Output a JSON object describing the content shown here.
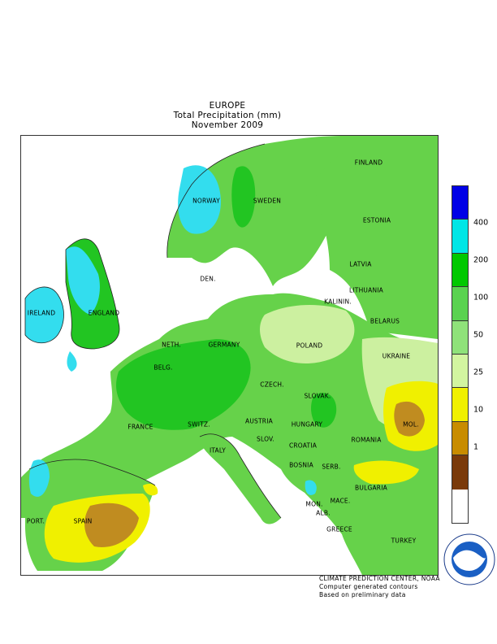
{
  "title": {
    "line1": "EUROPE",
    "line2": "Total Precipitation (mm)",
    "line3": "November 2009"
  },
  "countries": [
    "FINLAND",
    "NORWAY",
    "SWEDEN",
    "ESTONIA",
    "LATVIA",
    "DEN.",
    "LITHUANIA",
    "KALININ.",
    "BELARUS",
    "IRELAND",
    "ENGLAND",
    "NETH.",
    "GERMANY",
    "POLAND",
    "BELG.",
    "UKRAINE",
    "CZECH.",
    "SLOVAK.",
    "FRANCE",
    "AUSTRIA",
    "HUNGARY",
    "SWITZ.",
    "MOL.",
    "SLOV.",
    "ROMANIA",
    "CROATIA",
    "ITALY",
    "BOSNIA",
    "SERB.",
    "MON.",
    "BULGARIA",
    "MACE.",
    "PORT.",
    "SPAIN",
    "ALB.",
    "GREECE",
    "TURKEY"
  ],
  "legend": {
    "colors": [
      "#0000e6",
      "#00e6e6",
      "#00c800",
      "#5ad250",
      "#8fe27a",
      "#d2f5a0",
      "#f0f000",
      "#c88c00",
      "#7a3a0a"
    ],
    "labels": [
      "400",
      "200",
      "100",
      "50",
      "25",
      "10",
      "1"
    ]
  },
  "credits": {
    "line1": "CLIMATE PREDICTION CENTER, NOAA",
    "line2": "Computer generated contours",
    "line3": "Based on preliminary data"
  },
  "logo": {
    "text": "NOAA",
    "ring_text": "NATIONAL OCEANIC AND ATMOSPHERIC ADMINISTRATION · U.S. DEPARTMENT OF COMMERCE"
  },
  "colors": {
    "sea": "#ffffff",
    "wet_blue": "#33ddee",
    "green_dark": "#22c522",
    "green_mid": "#66d24a",
    "green_light": "#99e27a",
    "green_pale": "#ccf0a0",
    "yellow": "#f0f000",
    "brown_light": "#c08c20",
    "brown_dark": "#7a3a0a"
  }
}
